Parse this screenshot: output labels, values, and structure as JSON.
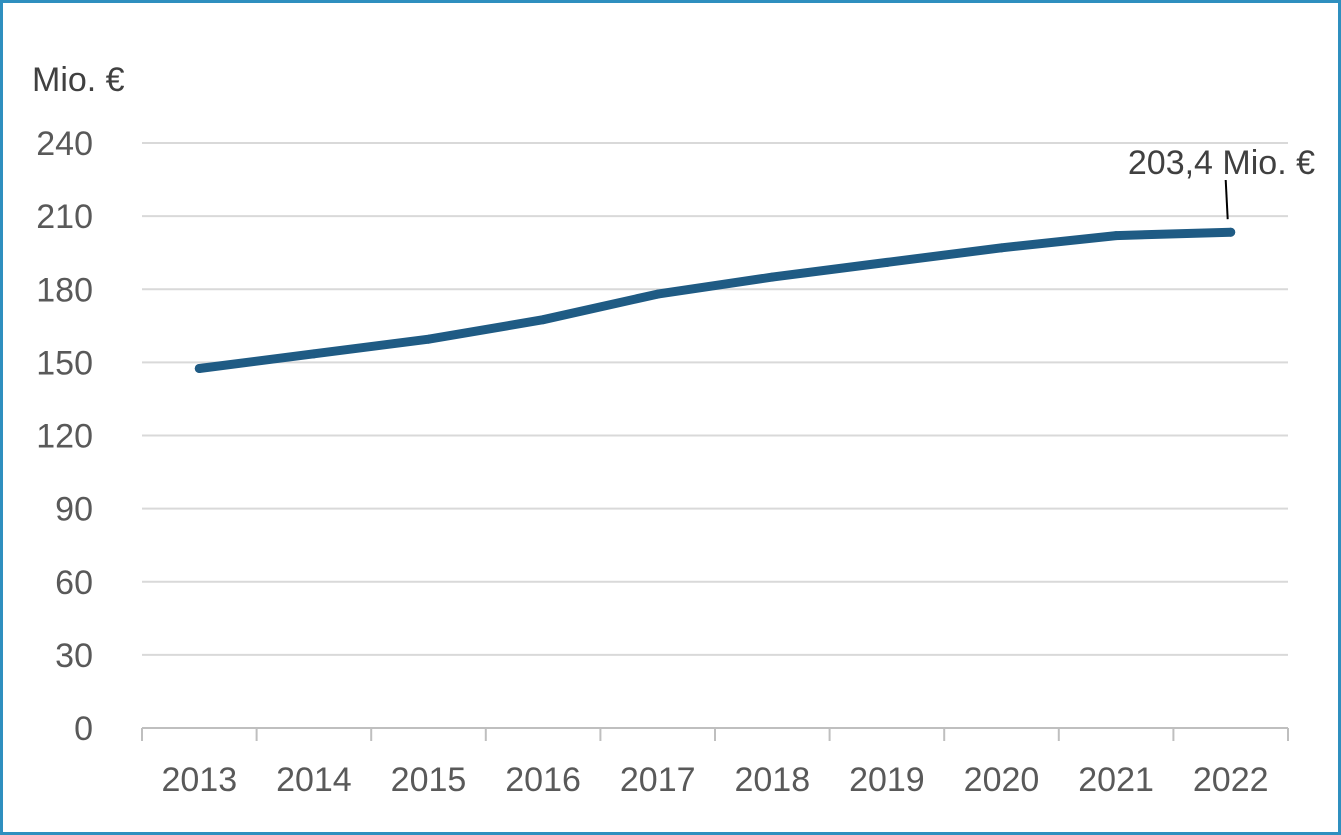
{
  "chart_data": {
    "type": "line",
    "title": "",
    "xlabel": "",
    "ylabel": "",
    "y_unit_label": "Mio. €",
    "categories": [
      "2013",
      "2014",
      "2015",
      "2016",
      "2017",
      "2018",
      "2019",
      "2020",
      "2021",
      "2022"
    ],
    "series": [
      {
        "values": [
          147.5,
          153.5,
          159.5,
          167.5,
          178,
          185,
          191,
          197,
          202,
          203.4
        ],
        "color": "#1f5b84"
      }
    ],
    "ylim": [
      0,
      240
    ],
    "yticks": [
      "0",
      "30",
      "60",
      "90",
      "120",
      "150",
      "180",
      "210",
      "240"
    ],
    "grid": true,
    "legend": "none",
    "annotation": {
      "text": "203,4 Mio. €",
      "category": "2022"
    }
  },
  "colors": {
    "frame": "#2f8fbf",
    "grid": "#d9d9d9",
    "axis": "#bfbfbf",
    "series": "#1f5b84",
    "tick_text": "#595959"
  }
}
